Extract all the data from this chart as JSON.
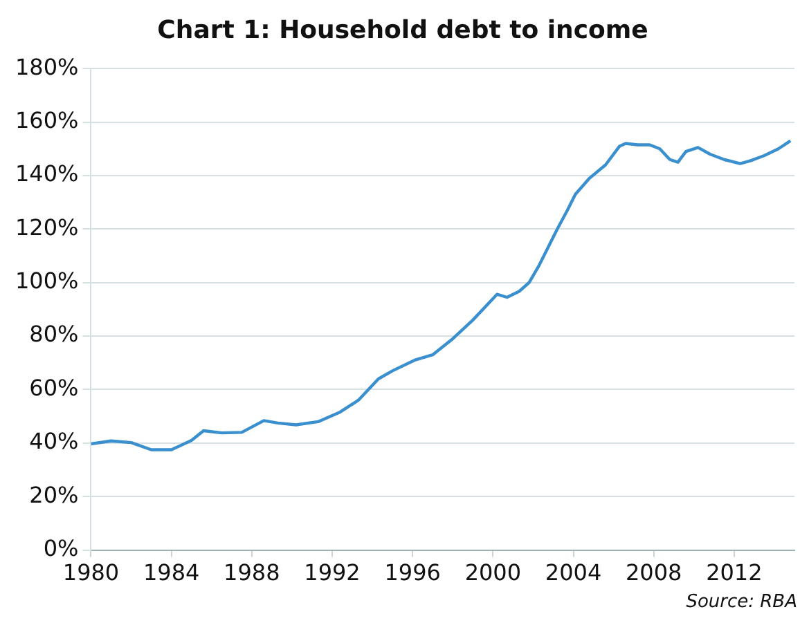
{
  "chart_data": {
    "type": "line",
    "title": "Chart 1: Household debt to income",
    "x": [
      1980,
      1981,
      1982,
      1983,
      1984,
      1985,
      1985.6,
      1986.5,
      1987.5,
      1988.6,
      1989.3,
      1990.2,
      1991.3,
      1992.4,
      1993.3,
      1994.3,
      1995,
      1996.1,
      1997,
      1998,
      1999,
      2000.2,
      2000.7,
      2001.3,
      2001.8,
      2002.3,
      2002.8,
      2003.2,
      2003.7,
      2004.1,
      2004.8,
      2005.6,
      2006.3,
      2006.6,
      2007.2,
      2007.8,
      2008.3,
      2008.8,
      2009.2,
      2009.6,
      2010.2,
      2010.8,
      2011.5,
      2012.3,
      2012.8,
      2013.5,
      2014.2,
      2014.8
    ],
    "series": [
      {
        "color": "#3a8fcf",
        "values": [
          39.7,
          40.8,
          40.2,
          37.5,
          37.5,
          41,
          44.6,
          43.8,
          44,
          48.4,
          47.5,
          46.8,
          48,
          51.6,
          56,
          64,
          67,
          71,
          73,
          79,
          86,
          95.6,
          94.5,
          96.7,
          100,
          106.5,
          114,
          120,
          127,
          133,
          139,
          144,
          151,
          152,
          151.5,
          151.5,
          150,
          146,
          145,
          149,
          150.5,
          148,
          146,
          144.5,
          145.5,
          147.5,
          150,
          153
        ]
      }
    ],
    "xlim": [
      1980,
      2015
    ],
    "xticks": [
      1980,
      1984,
      1988,
      1992,
      1996,
      2000,
      2004,
      2008,
      2012
    ],
    "ylim": [
      0,
      180
    ],
    "yticks": [
      {
        "value": 0,
        "label": "0%"
      },
      {
        "value": 20,
        "label": "20%"
      },
      {
        "value": 40,
        "label": "40%"
      },
      {
        "value": 60,
        "label": "60%"
      },
      {
        "value": 80,
        "label": "80%"
      },
      {
        "value": 100,
        "label": "100%"
      },
      {
        "value": 120,
        "label": "120%"
      },
      {
        "value": 140,
        "label": "140%"
      },
      {
        "value": 160,
        "label": "160%"
      },
      {
        "value": 180,
        "label": "180%"
      }
    ],
    "grid": "y",
    "legend": false,
    "marker": "none",
    "line_style": "solid",
    "annotations": [
      "Source: RBA"
    ]
  }
}
